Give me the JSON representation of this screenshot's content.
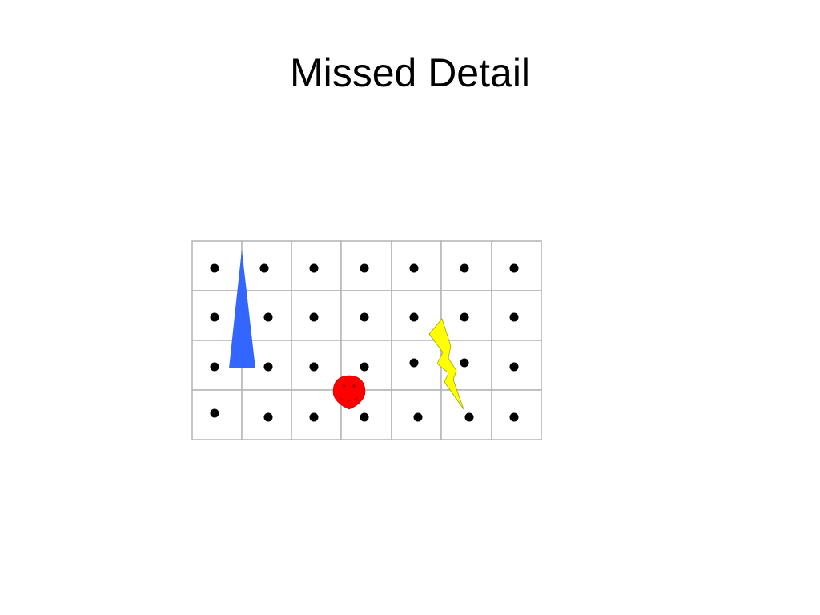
{
  "slide": {
    "title": "Missed Detail"
  },
  "figure": {
    "grid": {
      "rows": 4,
      "cols": 7,
      "cell_fill": "#ffffff",
      "line_color": "#b4b4b4"
    },
    "dot_color": "#000000",
    "shapes": [
      {
        "name": "blue-triangle",
        "color": "#3366ff"
      },
      {
        "name": "red-smiley-face",
        "color": "#ff0000"
      },
      {
        "name": "yellow-lightning-bolt",
        "color": "#ffff00"
      }
    ]
  }
}
